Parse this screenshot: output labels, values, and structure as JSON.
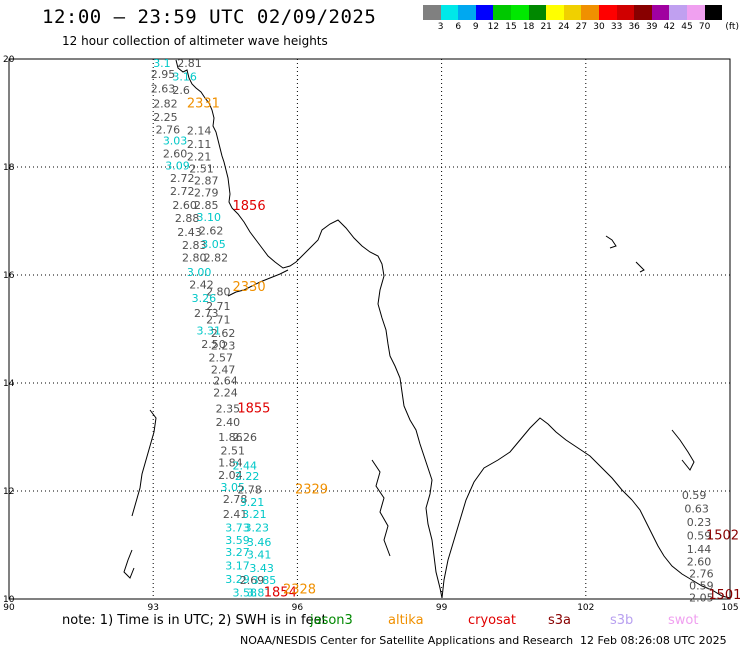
{
  "header": {
    "title": "12:00 – 23:59 UTC 02/09/2025",
    "subtitle": "12 hour collection of altimeter wave heights"
  },
  "legend": {
    "colors": [
      "#808080",
      "#00e8e8",
      "#00a8f0",
      "#0000ff",
      "#00c800",
      "#00e800",
      "#008800",
      "#ffff00",
      "#f0d000",
      "#f09000",
      "#ff0000",
      "#d00000",
      "#880000",
      "#a000a0",
      "#c0a0f0",
      "#f0a0f0",
      "#000000"
    ],
    "labels": [
      "3",
      "6",
      "9",
      "12",
      "15",
      "18",
      "21",
      "24",
      "27",
      "30",
      "33",
      "36",
      "39",
      "42",
      "45",
      "70"
    ],
    "unit": "(ft)"
  },
  "axes": {
    "x_ticks": [
      "90",
      "93",
      "96",
      "99",
      "102",
      "105"
    ],
    "y_ticks": [
      "20",
      "18",
      "16",
      "14",
      "12",
      "10"
    ]
  },
  "observations": {
    "values": [
      {
        "lon": 93.0,
        "lat": 19.85,
        "text": "3.1",
        "color": "#00c8c8"
      },
      {
        "lon": 93.5,
        "lat": 19.85,
        "text": "2.81",
        "color": "#505050"
      },
      {
        "lon": 92.95,
        "lat": 19.65,
        "text": "2.95",
        "color": "#505050"
      },
      {
        "lon": 93.4,
        "lat": 19.6,
        "text": "3.16",
        "color": "#00c8c8"
      },
      {
        "lon": 92.95,
        "lat": 19.38,
        "text": "2.63",
        "color": "#505050"
      },
      {
        "lon": 93.4,
        "lat": 19.35,
        "text": "2.6",
        "color": "#505050"
      },
      {
        "lon": 93.0,
        "lat": 19.1,
        "text": "2.82",
        "color": "#505050"
      },
      {
        "lon": 93.0,
        "lat": 18.85,
        "text": "2.25",
        "color": "#505050"
      },
      {
        "lon": 93.05,
        "lat": 18.62,
        "text": "2.76",
        "color": "#505050"
      },
      {
        "lon": 93.7,
        "lat": 18.6,
        "text": "2.14",
        "color": "#505050"
      },
      {
        "lon": 93.2,
        "lat": 18.42,
        "text": "3.03",
        "color": "#00c8c8"
      },
      {
        "lon": 93.7,
        "lat": 18.35,
        "text": "2.11",
        "color": "#505050"
      },
      {
        "lon": 93.2,
        "lat": 18.18,
        "text": "2.60",
        "color": "#505050"
      },
      {
        "lon": 93.7,
        "lat": 18.12,
        "text": "2.21",
        "color": "#505050"
      },
      {
        "lon": 93.25,
        "lat": 17.95,
        "text": "3.09",
        "color": "#00c8c8"
      },
      {
        "lon": 93.75,
        "lat": 17.9,
        "text": "2.51",
        "color": "#505050"
      },
      {
        "lon": 93.35,
        "lat": 17.72,
        "text": "2.72",
        "color": "#505050"
      },
      {
        "lon": 93.85,
        "lat": 17.68,
        "text": "2.87",
        "color": "#505050"
      },
      {
        "lon": 93.35,
        "lat": 17.48,
        "text": "2.72",
        "color": "#505050"
      },
      {
        "lon": 93.85,
        "lat": 17.45,
        "text": "2.79",
        "color": "#505050"
      },
      {
        "lon": 93.4,
        "lat": 17.22,
        "text": "2.60",
        "color": "#505050"
      },
      {
        "lon": 93.85,
        "lat": 17.22,
        "text": "2.85",
        "color": "#505050"
      },
      {
        "lon": 93.45,
        "lat": 16.98,
        "text": "2.88",
        "color": "#505050"
      },
      {
        "lon": 93.9,
        "lat": 17.0,
        "text": "3.10",
        "color": "#00c8c8"
      },
      {
        "lon": 93.5,
        "lat": 16.72,
        "text": "2.43",
        "color": "#505050"
      },
      {
        "lon": 93.95,
        "lat": 16.75,
        "text": "2.62",
        "color": "#505050"
      },
      {
        "lon": 93.6,
        "lat": 16.48,
        "text": "2.83",
        "color": "#505050"
      },
      {
        "lon": 94.0,
        "lat": 16.5,
        "text": "3.05",
        "color": "#00c8c8"
      },
      {
        "lon": 93.6,
        "lat": 16.25,
        "text": "2.80",
        "color": "#505050"
      },
      {
        "lon": 94.05,
        "lat": 16.25,
        "text": "2.82",
        "color": "#505050"
      },
      {
        "lon": 93.7,
        "lat": 15.98,
        "text": "3.00",
        "color": "#00c8c8"
      },
      {
        "lon": 93.75,
        "lat": 15.75,
        "text": "2.42",
        "color": "#505050"
      },
      {
        "lon": 94.1,
        "lat": 15.62,
        "text": "2.80",
        "color": "#505050"
      },
      {
        "lon": 93.8,
        "lat": 15.5,
        "text": "3.26",
        "color": "#00c8c8"
      },
      {
        "lon": 94.1,
        "lat": 15.35,
        "text": "2.71",
        "color": "#505050"
      },
      {
        "lon": 93.85,
        "lat": 15.22,
        "text": "2.73",
        "color": "#505050"
      },
      {
        "lon": 94.1,
        "lat": 15.1,
        "text": "2.71",
        "color": "#505050"
      },
      {
        "lon": 93.9,
        "lat": 14.9,
        "text": "3.31",
        "color": "#00c8c8"
      },
      {
        "lon": 94.2,
        "lat": 14.85,
        "text": "2.62",
        "color": "#505050"
      },
      {
        "lon": 94.0,
        "lat": 14.65,
        "text": "2.50",
        "color": "#505050"
      },
      {
        "lon": 94.2,
        "lat": 14.62,
        "text": "2.23",
        "color": "#505050"
      },
      {
        "lon": 94.15,
        "lat": 14.4,
        "text": "2.57",
        "color": "#505050"
      },
      {
        "lon": 94.2,
        "lat": 14.18,
        "text": "2.47",
        "color": "#505050"
      },
      {
        "lon": 94.25,
        "lat": 13.97,
        "text": "2.64",
        "color": "#505050"
      },
      {
        "lon": 94.25,
        "lat": 13.75,
        "text": "2.24",
        "color": "#505050"
      },
      {
        "lon": 94.3,
        "lat": 13.45,
        "text": "2.35",
        "color": "#505050"
      },
      {
        "lon": 94.3,
        "lat": 13.2,
        "text": "2.40",
        "color": "#505050"
      },
      {
        "lon": 94.35,
        "lat": 12.93,
        "text": "1.86",
        "color": "#505050"
      },
      {
        "lon": 94.65,
        "lat": 12.93,
        "text": "2.26",
        "color": "#505050"
      },
      {
        "lon": 94.4,
        "lat": 12.68,
        "text": "2.51",
        "color": "#505050"
      },
      {
        "lon": 94.35,
        "lat": 12.45,
        "text": "1.84",
        "color": "#505050"
      },
      {
        "lon": 94.65,
        "lat": 12.4,
        "text": "2.44",
        "color": "#00c8c8"
      },
      {
        "lon": 94.35,
        "lat": 12.22,
        "text": "2.04",
        "color": "#505050"
      },
      {
        "lon": 94.7,
        "lat": 12.2,
        "text": "2.22",
        "color": "#00c8c8"
      },
      {
        "lon": 94.4,
        "lat": 12.0,
        "text": "3.05",
        "color": "#00c8c8"
      },
      {
        "lon": 94.75,
        "lat": 11.95,
        "text": "2.78",
        "color": "#505050"
      },
      {
        "lon": 94.45,
        "lat": 11.78,
        "text": "2.78",
        "color": "#505050"
      },
      {
        "lon": 94.8,
        "lat": 11.72,
        "text": "3.21",
        "color": "#00c8c8"
      },
      {
        "lon": 94.45,
        "lat": 11.5,
        "text": "2.41",
        "color": "#505050"
      },
      {
        "lon": 94.85,
        "lat": 11.5,
        "text": "3.21",
        "color": "#00c8c8"
      },
      {
        "lon": 94.5,
        "lat": 11.25,
        "text": "3.73",
        "color": "#00c8c8"
      },
      {
        "lon": 94.9,
        "lat": 11.25,
        "text": "3.23",
        "color": "#00c8c8"
      },
      {
        "lon": 94.5,
        "lat": 11.02,
        "text": "3.59",
        "color": "#00c8c8"
      },
      {
        "lon": 94.95,
        "lat": 10.98,
        "text": "3.46",
        "color": "#00c8c8"
      },
      {
        "lon": 94.5,
        "lat": 10.8,
        "text": "3.27",
        "color": "#00c8c8"
      },
      {
        "lon": 94.95,
        "lat": 10.75,
        "text": "3.41",
        "color": "#00c8c8"
      },
      {
        "lon": 94.5,
        "lat": 10.55,
        "text": "3.17",
        "color": "#00c8c8"
      },
      {
        "lon": 95.0,
        "lat": 10.5,
        "text": "3.43",
        "color": "#00c8c8"
      },
      {
        "lon": 94.5,
        "lat": 10.3,
        "text": "3.29",
        "color": "#00c8c8"
      },
      {
        "lon": 94.8,
        "lat": 10.28,
        "text": "2.69",
        "color": "#505050"
      },
      {
        "lon": 95.05,
        "lat": 10.28,
        "text": "3.85",
        "color": "#00c8c8"
      },
      {
        "lon": 94.65,
        "lat": 10.05,
        "text": "3.58",
        "color": "#00c8c8"
      },
      {
        "lon": 94.95,
        "lat": 10.05,
        "text": "3.81",
        "color": "#00c8c8"
      },
      {
        "lon": 104.0,
        "lat": 11.85,
        "text": "0.59",
        "color": "#505050"
      },
      {
        "lon": 104.05,
        "lat": 11.6,
        "text": "0.63",
        "color": "#505050"
      },
      {
        "lon": 104.1,
        "lat": 11.35,
        "text": "0.23",
        "color": "#505050"
      },
      {
        "lon": 104.1,
        "lat": 11.1,
        "text": "0.59",
        "color": "#505050"
      },
      {
        "lon": 104.1,
        "lat": 10.85,
        "text": "1.44",
        "color": "#505050"
      },
      {
        "lon": 104.1,
        "lat": 10.62,
        "text": "2.60",
        "color": "#505050"
      },
      {
        "lon": 104.15,
        "lat": 10.4,
        "text": "2.76",
        "color": "#505050"
      },
      {
        "lon": 104.15,
        "lat": 10.18,
        "text": "0.59",
        "color": "#505050"
      },
      {
        "lon": 104.15,
        "lat": 9.95,
        "text": "2.05",
        "color": "#505050"
      }
    ],
    "pass_times": [
      {
        "lon": 93.7,
        "lat": 19.1,
        "text": "2331",
        "color": "#f09000"
      },
      {
        "lon": 94.65,
        "lat": 17.2,
        "text": "1856",
        "color": "#e00000"
      },
      {
        "lon": 94.65,
        "lat": 15.7,
        "text": "2330",
        "color": "#f09000"
      },
      {
        "lon": 94.75,
        "lat": 13.45,
        "text": "1855",
        "color": "#e00000"
      },
      {
        "lon": 95.95,
        "lat": 11.95,
        "text": "2329",
        "color": "#f09000"
      },
      {
        "lon": 95.3,
        "lat": 10.05,
        "text": "1854",
        "color": "#e00000"
      },
      {
        "lon": 95.7,
        "lat": 10.1,
        "text": "2328",
        "color": "#f09000"
      },
      {
        "lon": 104.5,
        "lat": 11.1,
        "text": "1502",
        "color": "#880000"
      },
      {
        "lon": 104.55,
        "lat": 10.0,
        "text": "1501",
        "color": "#880000"
      }
    ]
  },
  "footer": {
    "note": "note:  1) Time is in UTC;  2) SWH is in feet",
    "satellites": [
      {
        "name": "jason3",
        "color": "#008800"
      },
      {
        "name": "altika",
        "color": "#f09000"
      },
      {
        "name": "cryosat",
        "color": "#e00000"
      },
      {
        "name": "s3a",
        "color": "#880000"
      },
      {
        "name": "s3b",
        "color": "#b8a0f0"
      },
      {
        "name": "swot",
        "color": "#f0a0f0"
      }
    ],
    "credit": "NOAA/NESDIS Center for Satellite Applications and Research",
    "timestamp": "12 Feb 08:26:08 UTC 2025"
  }
}
